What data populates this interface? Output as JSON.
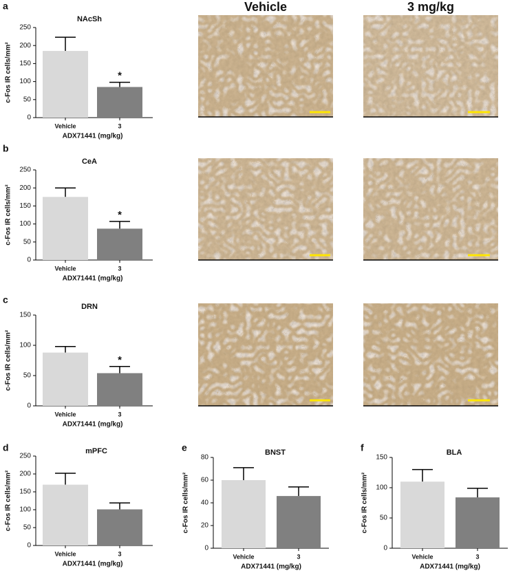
{
  "image_headers": [
    "Vehicle",
    "3 mg/kg"
  ],
  "chart_data": [
    {
      "type": "bar",
      "panel": "a",
      "title": "NAcSh",
      "categories": [
        "Vehicle",
        "3"
      ],
      "values": [
        185,
        85
      ],
      "errors": [
        38,
        13
      ],
      "colors": [
        "#d9d9d9",
        "#808080"
      ],
      "ylabel": "c-Fos IR cells/mm²",
      "xlabel": "ADX71441 (mg/kg)",
      "ylim": [
        0,
        250
      ],
      "yticks": [
        0,
        50,
        100,
        150,
        200,
        250
      ],
      "annotations": [
        {
          "text": "*",
          "category": "3"
        }
      ]
    },
    {
      "type": "bar",
      "panel": "b",
      "title": "CeA",
      "categories": [
        "Vehicle",
        "3"
      ],
      "values": [
        175,
        87
      ],
      "errors": [
        25,
        20
      ],
      "colors": [
        "#d9d9d9",
        "#808080"
      ],
      "ylabel": "c-Fos IR cells/mm²",
      "xlabel": "ADX71441 (mg/kg)",
      "ylim": [
        0,
        250
      ],
      "yticks": [
        0,
        50,
        100,
        150,
        200,
        250
      ],
      "annotations": [
        {
          "text": "*",
          "category": "3"
        }
      ]
    },
    {
      "type": "bar",
      "panel": "c",
      "title": "DRN",
      "categories": [
        "Vehicle",
        "3"
      ],
      "values": [
        88,
        54
      ],
      "errors": [
        10,
        11
      ],
      "colors": [
        "#d9d9d9",
        "#808080"
      ],
      "ylabel": "c-Fos IR cells/mm²",
      "xlabel": "ADX71441 (mg/kg)",
      "ylim": [
        0,
        150
      ],
      "yticks": [
        0,
        50,
        100,
        150
      ],
      "annotations": [
        {
          "text": "*",
          "category": "3"
        }
      ]
    },
    {
      "type": "bar",
      "panel": "d",
      "title": "mPFC",
      "categories": [
        "Vehicle",
        "3"
      ],
      "values": [
        170,
        101
      ],
      "errors": [
        32,
        18
      ],
      "colors": [
        "#d9d9d9",
        "#808080"
      ],
      "ylabel": "c-Fos IR cells/mm²",
      "xlabel": "ADX71441 (mg/kg)",
      "ylim": [
        0,
        250
      ],
      "yticks": [
        0,
        50,
        100,
        150,
        200,
        250
      ],
      "annotations": []
    },
    {
      "type": "bar",
      "panel": "e",
      "title": "BNST",
      "categories": [
        "Vehicle",
        "3"
      ],
      "values": [
        60,
        46
      ],
      "errors": [
        11,
        8
      ],
      "colors": [
        "#d9d9d9",
        "#808080"
      ],
      "ylabel": "c-Fos IR cells/mm²",
      "xlabel": "ADX71441 (mg/kg)",
      "ylim": [
        0,
        80
      ],
      "yticks": [
        0,
        20,
        40,
        60,
        80
      ],
      "annotations": []
    },
    {
      "type": "bar",
      "panel": "f",
      "title": "BLA",
      "categories": [
        "Vehicle",
        "3"
      ],
      "values": [
        110,
        84
      ],
      "errors": [
        20,
        15
      ],
      "colors": [
        "#d9d9d9",
        "#808080"
      ],
      "ylabel": "c-Fos IR cells/mm²",
      "xlabel": "ADX71441 (mg/kg)",
      "ylim": [
        0,
        150
      ],
      "yticks": [
        0,
        50,
        100,
        150
      ],
      "annotations": []
    }
  ]
}
